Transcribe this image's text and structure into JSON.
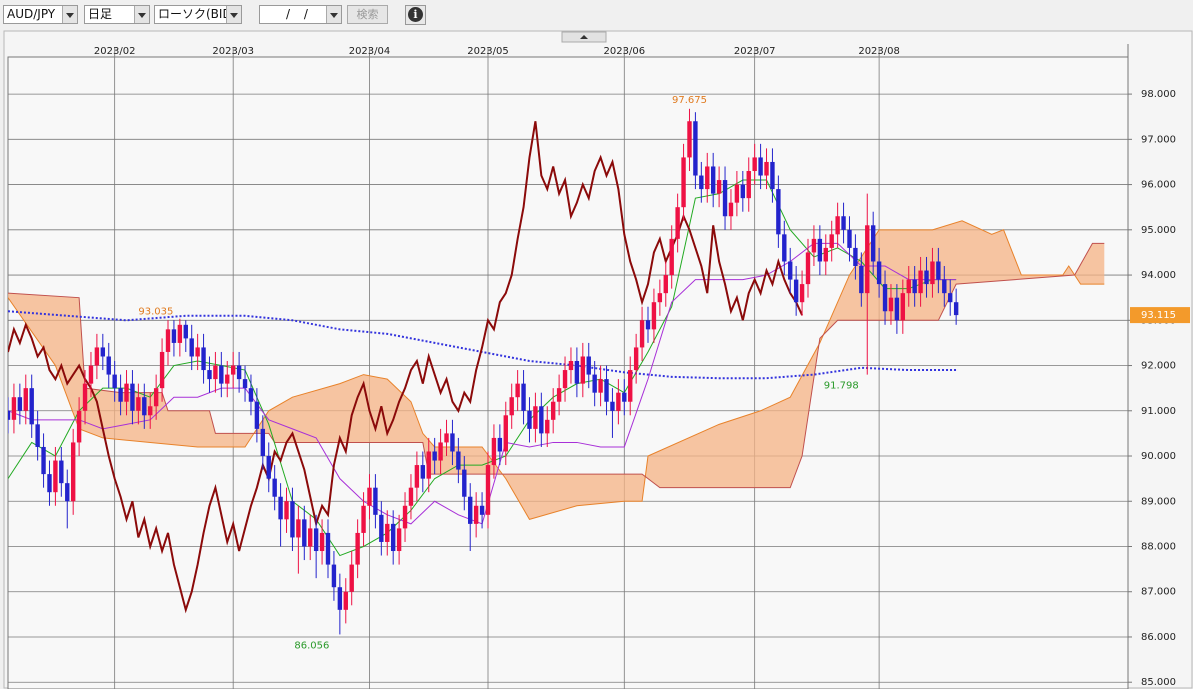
{
  "toolbar": {
    "symbol": "AUD/JPY",
    "period": "日足",
    "chart_kind": "ローソク(BID)",
    "date": "/ /",
    "search": "検索"
  },
  "chart_data": {
    "type": "candlestick",
    "up_color": "#ee1144",
    "down_color": "#2323cc",
    "xlim": [
      0,
      189
    ],
    "ylim": [
      84.85,
      98.82
    ],
    "xticks": [
      {
        "value": 18,
        "label": "2023/02"
      },
      {
        "value": 38,
        "label": "2023/03"
      },
      {
        "value": 61,
        "label": "2023/04"
      },
      {
        "value": 81,
        "label": "2023/05"
      },
      {
        "value": 104,
        "label": "2023/06"
      },
      {
        "value": 126,
        "label": "2023/07"
      },
      {
        "value": 147,
        "label": "2023/08"
      }
    ],
    "yticks": [
      {
        "value": 85,
        "label": "85.000"
      },
      {
        "value": 86,
        "label": "86.000"
      },
      {
        "value": 87,
        "label": "87.000"
      },
      {
        "value": 88,
        "label": "88.000"
      },
      {
        "value": 89,
        "label": "89.000"
      },
      {
        "value": 90,
        "label": "90.000"
      },
      {
        "value": 91,
        "label": "91.000"
      },
      {
        "value": 92,
        "label": "92.000"
      },
      {
        "value": 93,
        "label": "93.000"
      },
      {
        "value": 94,
        "label": "94.000"
      },
      {
        "value": 95,
        "label": "95.000"
      },
      {
        "value": 96,
        "label": "96.000"
      },
      {
        "value": 97,
        "label": "97.000"
      },
      {
        "value": 98,
        "label": "98.000"
      }
    ],
    "grid": true,
    "ohlc": [
      [
        91.0,
        91.3,
        90.5,
        90.8
      ],
      [
        90.8,
        91.6,
        90.5,
        91.3
      ],
      [
        91.3,
        91.6,
        90.7,
        91.0
      ],
      [
        91.0,
        91.8,
        90.7,
        91.5
      ],
      [
        91.5,
        91.8,
        90.4,
        90.7
      ],
      [
        90.7,
        91.0,
        89.9,
        90.2
      ],
      [
        90.2,
        90.5,
        89.3,
        89.6
      ],
      [
        89.6,
        89.9,
        88.9,
        89.2
      ],
      [
        89.2,
        90.2,
        88.9,
        89.9
      ],
      [
        89.9,
        90.2,
        89.1,
        89.4
      ],
      [
        89.4,
        89.7,
        88.4,
        89.0
      ],
      [
        89.0,
        90.6,
        88.7,
        90.3
      ],
      [
        90.3,
        91.3,
        90.0,
        91.0
      ],
      [
        91.0,
        91.9,
        90.7,
        91.6
      ],
      [
        91.6,
        92.3,
        91.3,
        92.0
      ],
      [
        92.0,
        92.7,
        91.7,
        92.4
      ],
      [
        92.4,
        92.7,
        91.9,
        92.2
      ],
      [
        92.2,
        92.5,
        91.5,
        91.8
      ],
      [
        91.8,
        92.1,
        91.2,
        91.5
      ],
      [
        91.5,
        91.8,
        90.9,
        91.2
      ],
      [
        91.2,
        91.9,
        90.9,
        91.6
      ],
      [
        91.6,
        91.9,
        90.7,
        91.0
      ],
      [
        91.0,
        91.6,
        90.7,
        91.3
      ],
      [
        91.3,
        91.6,
        90.6,
        90.9
      ],
      [
        90.9,
        91.4,
        90.6,
        91.1
      ],
      [
        91.1,
        91.8,
        90.8,
        91.5
      ],
      [
        91.5,
        92.6,
        91.2,
        92.3
      ],
      [
        92.3,
        93.0,
        92.0,
        92.8
      ],
      [
        92.8,
        93.0,
        92.2,
        92.5
      ],
      [
        92.5,
        93.035,
        92.2,
        92.9
      ],
      [
        92.9,
        93.0,
        92.3,
        92.6
      ],
      [
        92.6,
        92.9,
        91.9,
        92.2
      ],
      [
        92.2,
        92.7,
        91.9,
        92.4
      ],
      [
        92.4,
        92.7,
        91.6,
        91.9
      ],
      [
        91.9,
        92.2,
        91.4,
        91.7
      ],
      [
        91.7,
        92.3,
        91.4,
        92.0
      ],
      [
        92.0,
        92.3,
        91.3,
        91.6
      ],
      [
        91.6,
        92.1,
        91.3,
        91.8
      ],
      [
        91.8,
        92.3,
        91.5,
        92.0
      ],
      [
        92.0,
        92.3,
        91.4,
        91.7
      ],
      [
        91.7,
        92.0,
        91.2,
        91.5
      ],
      [
        91.5,
        91.8,
        90.9,
        91.2
      ],
      [
        91.2,
        91.5,
        90.3,
        90.6
      ],
      [
        90.6,
        90.9,
        89.7,
        90.0
      ],
      [
        90.0,
        90.3,
        89.2,
        89.5
      ],
      [
        89.5,
        89.8,
        88.8,
        89.1
      ],
      [
        89.1,
        89.4,
        88.0,
        88.6
      ],
      [
        88.6,
        89.3,
        88.3,
        89.0
      ],
      [
        89.0,
        89.3,
        87.9,
        88.2
      ],
      [
        88.2,
        88.9,
        87.4,
        88.6
      ],
      [
        88.6,
        88.9,
        87.7,
        88.0
      ],
      [
        88.0,
        88.7,
        87.7,
        88.4
      ],
      [
        88.4,
        88.7,
        87.3,
        87.9
      ],
      [
        87.9,
        88.6,
        87.6,
        88.3
      ],
      [
        88.3,
        88.6,
        87.3,
        87.6
      ],
      [
        87.6,
        87.9,
        86.8,
        87.1
      ],
      [
        87.1,
        87.4,
        86.056,
        86.6
      ],
      [
        86.6,
        87.3,
        86.3,
        87.0
      ],
      [
        87.0,
        87.9,
        86.7,
        87.6
      ],
      [
        87.6,
        88.6,
        87.3,
        88.3
      ],
      [
        88.3,
        89.2,
        88.0,
        88.9
      ],
      [
        88.9,
        89.6,
        88.6,
        89.3
      ],
      [
        89.3,
        89.6,
        88.4,
        88.7
      ],
      [
        88.7,
        89.0,
        87.8,
        88.1
      ],
      [
        88.1,
        88.8,
        87.8,
        88.5
      ],
      [
        88.5,
        88.8,
        87.6,
        87.9
      ],
      [
        87.9,
        88.7,
        87.6,
        88.4
      ],
      [
        88.4,
        89.2,
        88.1,
        88.9
      ],
      [
        88.9,
        89.6,
        88.6,
        89.3
      ],
      [
        89.3,
        90.1,
        89.0,
        89.8
      ],
      [
        89.8,
        90.1,
        89.2,
        89.5
      ],
      [
        89.5,
        90.4,
        89.2,
        90.1
      ],
      [
        90.1,
        90.4,
        89.6,
        89.9
      ],
      [
        89.9,
        90.6,
        89.6,
        90.3
      ],
      [
        90.3,
        90.8,
        90.0,
        90.5
      ],
      [
        90.5,
        90.8,
        89.8,
        90.1
      ],
      [
        90.1,
        90.4,
        89.4,
        89.7
      ],
      [
        89.7,
        90.0,
        88.8,
        89.1
      ],
      [
        89.1,
        89.4,
        87.9,
        88.5
      ],
      [
        88.5,
        89.2,
        88.2,
        88.9
      ],
      [
        88.9,
        89.2,
        88.4,
        88.7
      ],
      [
        88.7,
        90.1,
        88.4,
        89.8
      ],
      [
        89.8,
        90.7,
        89.5,
        90.4
      ],
      [
        90.4,
        90.7,
        89.8,
        90.1
      ],
      [
        90.1,
        91.2,
        89.8,
        90.9
      ],
      [
        90.9,
        91.6,
        90.6,
        91.3
      ],
      [
        91.3,
        91.9,
        91.0,
        91.6
      ],
      [
        91.6,
        91.9,
        90.7,
        91.0
      ],
      [
        91.0,
        91.3,
        90.3,
        90.6
      ],
      [
        90.6,
        91.4,
        90.3,
        91.1
      ],
      [
        91.1,
        91.4,
        90.2,
        90.5
      ],
      [
        90.5,
        91.1,
        90.2,
        90.8
      ],
      [
        90.8,
        91.5,
        90.5,
        91.2
      ],
      [
        91.2,
        91.8,
        90.9,
        91.5
      ],
      [
        91.5,
        92.2,
        91.2,
        91.9
      ],
      [
        91.9,
        92.4,
        91.6,
        92.1
      ],
      [
        92.1,
        92.4,
        91.3,
        91.6
      ],
      [
        91.6,
        92.5,
        91.3,
        92.2
      ],
      [
        92.2,
        92.5,
        91.5,
        91.8
      ],
      [
        91.8,
        92.1,
        91.1,
        91.4
      ],
      [
        91.4,
        92.0,
        91.1,
        91.7
      ],
      [
        91.7,
        92.0,
        90.9,
        91.2
      ],
      [
        91.2,
        91.5,
        90.4,
        91.0
      ],
      [
        91.0,
        91.7,
        90.7,
        91.4
      ],
      [
        91.4,
        91.7,
        90.9,
        91.2
      ],
      [
        91.2,
        92.2,
        90.9,
        91.9
      ],
      [
        91.9,
        92.7,
        91.6,
        92.4
      ],
      [
        92.4,
        93.3,
        92.1,
        93.0
      ],
      [
        93.0,
        93.3,
        92.5,
        92.8
      ],
      [
        92.8,
        93.7,
        92.5,
        93.4
      ],
      [
        93.4,
        93.9,
        93.1,
        93.6
      ],
      [
        93.6,
        94.3,
        93.3,
        94.0
      ],
      [
        94.0,
        95.1,
        93.7,
        94.8
      ],
      [
        94.8,
        95.8,
        94.5,
        95.5
      ],
      [
        95.5,
        96.9,
        95.2,
        96.6
      ],
      [
        96.6,
        97.675,
        96.3,
        97.4
      ],
      [
        97.4,
        97.6,
        95.9,
        96.2
      ],
      [
        96.2,
        96.5,
        95.6,
        95.9
      ],
      [
        95.9,
        96.7,
        95.6,
        96.4
      ],
      [
        96.4,
        96.7,
        95.5,
        95.8
      ],
      [
        95.8,
        96.4,
        95.5,
        96.1
      ],
      [
        96.1,
        96.4,
        95.0,
        95.3
      ],
      [
        95.3,
        95.9,
        95.0,
        95.6
      ],
      [
        95.6,
        96.3,
        95.3,
        96.0
      ],
      [
        96.0,
        96.3,
        95.4,
        95.7
      ],
      [
        95.7,
        96.6,
        95.4,
        96.3
      ],
      [
        96.3,
        96.9,
        96.0,
        96.6
      ],
      [
        96.6,
        96.9,
        95.9,
        96.2
      ],
      [
        96.2,
        96.8,
        95.9,
        96.5
      ],
      [
        96.5,
        96.8,
        95.6,
        95.9
      ],
      [
        95.9,
        96.2,
        94.6,
        94.9
      ],
      [
        94.9,
        95.2,
        94.0,
        94.3
      ],
      [
        94.3,
        94.6,
        93.6,
        93.9
      ],
      [
        93.9,
        94.2,
        93.1,
        93.4
      ],
      [
        93.4,
        94.1,
        93.1,
        93.8
      ],
      [
        93.8,
        94.8,
        93.5,
        94.5
      ],
      [
        94.5,
        95.1,
        94.2,
        94.8
      ],
      [
        94.8,
        95.1,
        94.0,
        94.3
      ],
      [
        94.3,
        94.9,
        94.0,
        94.6
      ],
      [
        94.6,
        95.2,
        94.3,
        94.9
      ],
      [
        94.9,
        95.6,
        94.6,
        95.3
      ],
      [
        95.3,
        95.6,
        94.7,
        95.0
      ],
      [
        95.0,
        95.3,
        94.3,
        94.6
      ],
      [
        94.6,
        94.9,
        93.9,
        94.2
      ],
      [
        94.2,
        94.5,
        93.3,
        93.6
      ],
      [
        93.6,
        95.8,
        91.798,
        95.1
      ],
      [
        95.1,
        95.4,
        94.0,
        94.3
      ],
      [
        94.3,
        94.6,
        93.5,
        93.8
      ],
      [
        93.8,
        94.1,
        92.9,
        93.2
      ],
      [
        93.2,
        93.8,
        92.9,
        93.5
      ],
      [
        93.5,
        93.8,
        92.7,
        93.0
      ],
      [
        93.0,
        93.9,
        92.7,
        93.6
      ],
      [
        93.6,
        94.2,
        93.3,
        93.9
      ],
      [
        93.9,
        94.2,
        93.3,
        93.6
      ],
      [
        93.6,
        94.4,
        93.3,
        94.1
      ],
      [
        94.1,
        94.4,
        93.5,
        93.8
      ],
      [
        93.8,
        94.6,
        93.5,
        94.3
      ],
      [
        94.3,
        94.6,
        93.6,
        93.9
      ],
      [
        93.9,
        94.2,
        93.3,
        93.6
      ],
      [
        93.6,
        93.9,
        93.1,
        93.4
      ],
      [
        93.4,
        93.7,
        92.9,
        93.115
      ]
    ],
    "series": [
      {
        "color": "#e8822a",
        "x": [
          0,
          8,
          12,
          16,
          24,
          32,
          40,
          44,
          48,
          56,
          60,
          64,
          68,
          70,
          72,
          80,
          84,
          88,
          96,
          104,
          107,
          108,
          120,
          127,
          132,
          137,
          142,
          147,
          156,
          161,
          166,
          168,
          171,
          178,
          179,
          181,
          185
        ],
        "values": [
          93.5,
          92.0,
          90.6,
          90.4,
          90.3,
          90.2,
          90.2,
          91.0,
          91.3,
          91.6,
          91.8,
          91.7,
          91.2,
          90.5,
          90.2,
          90.2,
          89.5,
          88.6,
          88.9,
          89.0,
          89.0,
          90.0,
          90.7,
          91.0,
          91.3,
          92.5,
          94.0,
          95.0,
          95.0,
          95.2,
          94.9,
          95.0,
          94.0,
          94.0,
          94.2,
          93.8,
          93.8
        ]
      },
      {
        "color": "#c0504d",
        "x": [
          0,
          12,
          13,
          19,
          26,
          27,
          34,
          35,
          44,
          45,
          70,
          71,
          107,
          110,
          132,
          134,
          137,
          140,
          157,
          160,
          180,
          183,
          185
        ],
        "values": [
          93.6,
          93.5,
          91.5,
          91.4,
          91.4,
          91.0,
          91.0,
          90.5,
          90.5,
          90.3,
          90.3,
          89.6,
          89.6,
          89.3,
          89.3,
          90.0,
          92.6,
          93.0,
          93.0,
          93.8,
          94.0,
          94.7,
          94.7
        ]
      },
      {
        "color": "#22aa22",
        "x": [
          0,
          4,
          8,
          12,
          16,
          20,
          24,
          28,
          32,
          36,
          40,
          44,
          48,
          52,
          56,
          60,
          64,
          68,
          72,
          76,
          80,
          84,
          88,
          92,
          96,
          100,
          104,
          108,
          112,
          116,
          120,
          124,
          128,
          132,
          136,
          140,
          144,
          148,
          152,
          156,
          160
        ],
        "values": [
          89.5,
          90.3,
          90.0,
          91.0,
          91.5,
          91.5,
          91.3,
          92.0,
          92.1,
          92.0,
          91.9,
          90.7,
          89.0,
          88.6,
          87.8,
          88.0,
          88.3,
          88.8,
          89.5,
          89.8,
          89.8,
          90.0,
          90.8,
          91.3,
          91.6,
          91.7,
          91.4,
          92.3,
          93.3,
          95.7,
          95.8,
          96.1,
          96.1,
          95.0,
          94.4,
          94.6,
          94.3,
          93.7,
          93.7,
          93.9,
          93.9
        ]
      },
      {
        "color": "#a830d8",
        "x": [
          0,
          4,
          8,
          12,
          16,
          20,
          24,
          28,
          32,
          36,
          40,
          44,
          48,
          52,
          56,
          60,
          64,
          68,
          72,
          76,
          80,
          84,
          88,
          92,
          96,
          100,
          104,
          108,
          112,
          116,
          120,
          124,
          128,
          132,
          136,
          140,
          144,
          148,
          152,
          156,
          160
        ],
        "values": [
          91.0,
          90.8,
          90.8,
          90.8,
          90.6,
          90.7,
          90.8,
          91.3,
          91.3,
          91.5,
          91.5,
          90.8,
          90.6,
          90.4,
          89.5,
          89.0,
          88.7,
          88.5,
          89.0,
          88.7,
          88.5,
          90.3,
          90.2,
          90.3,
          90.3,
          90.2,
          90.2,
          91.7,
          93.4,
          93.9,
          93.9,
          93.9,
          94.0,
          94.3,
          94.7,
          94.7,
          94.2,
          94.2,
          93.9,
          93.9,
          93.9
        ]
      },
      {
        "color": "#3333dd",
        "dotted": true,
        "x": [
          0,
          10,
          20,
          30,
          40,
          48,
          56,
          64,
          72,
          80,
          88,
          96,
          104,
          112,
          120,
          128,
          136,
          144,
          152,
          160
        ],
        "values": [
          93.2,
          93.1,
          93.0,
          93.1,
          93.1,
          93.0,
          92.8,
          92.7,
          92.5,
          92.3,
          92.1,
          92.0,
          91.85,
          91.75,
          91.72,
          91.72,
          91.8,
          91.95,
          91.9,
          91.9
        ]
      }
    ],
    "lagging_color": "#8b0a0a",
    "cloud_color": "#f6b384"
  }
}
